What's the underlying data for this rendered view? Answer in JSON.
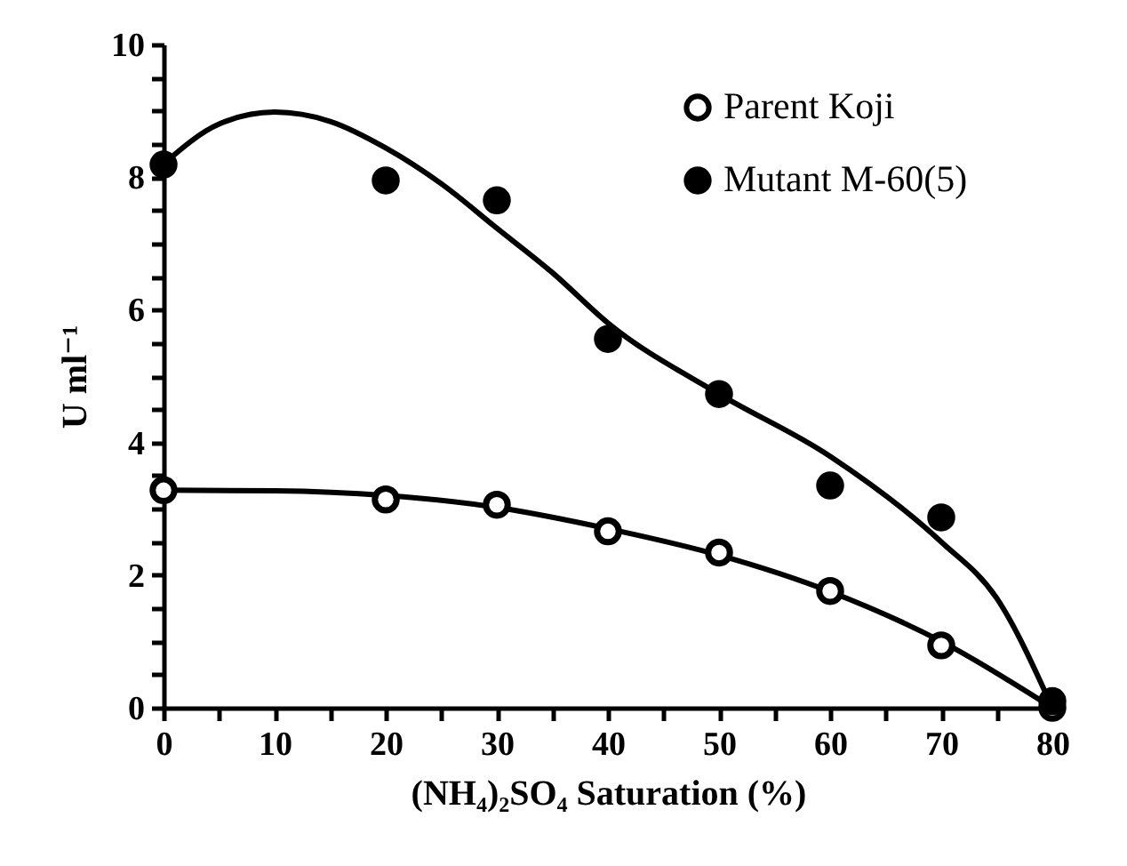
{
  "chart_data": {
    "type": "scatter",
    "xlabel": "(NH₄)₂SO₄ Saturation (%)",
    "ylabel": "U ml⁻¹",
    "x": [
      0,
      20,
      30,
      40,
      50,
      60,
      70,
      80
    ],
    "series": [
      {
        "name": "Parent Koji",
        "color": "#000000",
        "values": [
          3.28,
          3.14,
          3.06,
          2.66,
          2.34,
          1.76,
          0.94,
          0
        ]
      },
      {
        "name": "Mutant M-60(5)",
        "color": "#000000",
        "values": [
          8.19,
          7.95,
          7.65,
          5.56,
          4.73,
          3.35,
          2.87,
          0.1
        ]
      },
      {
        "type": "line",
        "marker": "none",
        "color": "#000000",
        "x": [
          0,
          10,
          20,
          30,
          40,
          50,
          60,
          70,
          80
        ],
        "values": [
          3.28,
          3.27,
          3.2,
          3.02,
          2.7,
          2.3,
          1.75,
          1.0,
          0
        ]
      },
      {
        "type": "line",
        "marker": "none",
        "color": "#000000",
        "x": [
          0,
          5,
          10,
          15,
          20,
          25,
          30,
          35,
          40,
          50,
          60,
          70,
          75,
          80
        ],
        "values": [
          8.2,
          8.8,
          8.98,
          8.84,
          8.44,
          7.9,
          7.23,
          6.56,
          5.8,
          4.73,
          3.79,
          2.5,
          1.65,
          0
        ]
      }
    ],
    "xlim": [
      0,
      80
    ],
    "ylim": [
      0,
      10
    ],
    "xticks": [
      0,
      {
        "value": 5,
        "label": null
      },
      10,
      {
        "value": 15,
        "label": null
      },
      20,
      {
        "value": 25,
        "label": null
      },
      30,
      {
        "value": 35,
        "label": null
      },
      40,
      {
        "value": 45,
        "label": null
      },
      50,
      {
        "value": 55,
        "label": null
      },
      60,
      {
        "value": 65,
        "label": null
      },
      70,
      {
        "value": 75,
        "label": null
      },
      80
    ],
    "yticks": [
      0,
      {
        "value": 0.5,
        "label": null
      },
      {
        "value": 1,
        "label": null
      },
      {
        "value": 1.5,
        "label": null
      },
      2,
      {
        "value": 2.5,
        "label": null
      },
      {
        "value": 3,
        "label": null
      },
      {
        "value": 3.5,
        "label": null
      },
      4,
      {
        "value": 4.5,
        "label": null
      },
      {
        "value": 5,
        "label": null
      },
      {
        "value": 5.5,
        "label": null
      },
      6,
      {
        "value": 6.5,
        "label": null
      },
      {
        "value": 7,
        "label": null
      },
      {
        "value": 7.5,
        "label": null
      },
      8,
      {
        "value": 8.5,
        "label": null
      },
      {
        "value": 9,
        "label": null
      },
      {
        "value": 9.5,
        "label": null
      },
      10
    ],
    "grid": false,
    "legend": "top right",
    "marker": "circle",
    "line_style": "solid"
  }
}
